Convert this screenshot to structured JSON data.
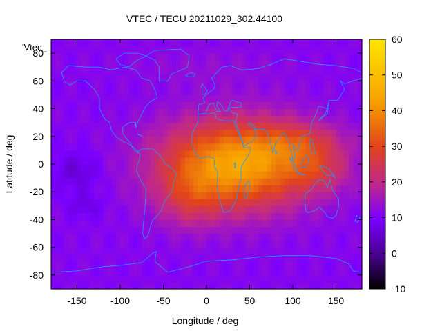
{
  "chart_data": {
    "type": "heatmap",
    "title": "VTEC / TECU 20211029_302.44100",
    "xlabel": "Longitude / deg",
    "ylabel": "Latitude / deg",
    "legend_key": "'Vtec_",
    "xlim": [
      -180,
      180
    ],
    "ylim": [
      -90,
      90
    ],
    "x_ticks": [
      -150,
      -100,
      -50,
      0,
      50,
      100,
      150
    ],
    "y_ticks": [
      -80,
      -60,
      -40,
      -20,
      0,
      20,
      40,
      60,
      80
    ],
    "colorbar": {
      "range": [
        -10,
        60
      ],
      "ticks": [
        -10,
        0,
        10,
        20,
        30,
        40,
        50,
        60
      ],
      "palette": [
        "#000000",
        "#4b0092",
        "#7a00ff",
        "#c0288c",
        "#e2441a",
        "#f7a000",
        "#ffe600"
      ]
    },
    "grid": false,
    "legend_position": "top-left",
    "coastline_color": "#1e9bff",
    "field_model": {
      "background_tecu": 11,
      "anomalies": [
        {
          "lon": 35,
          "lat": 0,
          "amp_tecu": 33,
          "sigma_lon": 60,
          "sigma_lat": 22
        },
        {
          "lon": 110,
          "lat": 15,
          "amp_tecu": 10,
          "sigma_lon": 35,
          "sigma_lat": 10
        },
        {
          "lon": 130,
          "lat": -5,
          "amp_tecu": 8,
          "sigma_lon": 25,
          "sigma_lat": 10
        },
        {
          "lon": -20,
          "lat": -25,
          "amp_tecu": 8,
          "sigma_lon": 25,
          "sigma_lat": 15
        },
        {
          "lon": -150,
          "lat": -5,
          "amp_tecu": -5,
          "sigma_lon": 20,
          "sigma_lat": 10
        },
        {
          "lon": -140,
          "lat": -30,
          "amp_tecu": -4,
          "sigma_lon": 15,
          "sigma_lat": 6
        },
        {
          "lon": 0,
          "lat": 70,
          "amp_tecu": 2,
          "sigma_lon": 60,
          "sigma_lat": 10
        }
      ]
    }
  }
}
